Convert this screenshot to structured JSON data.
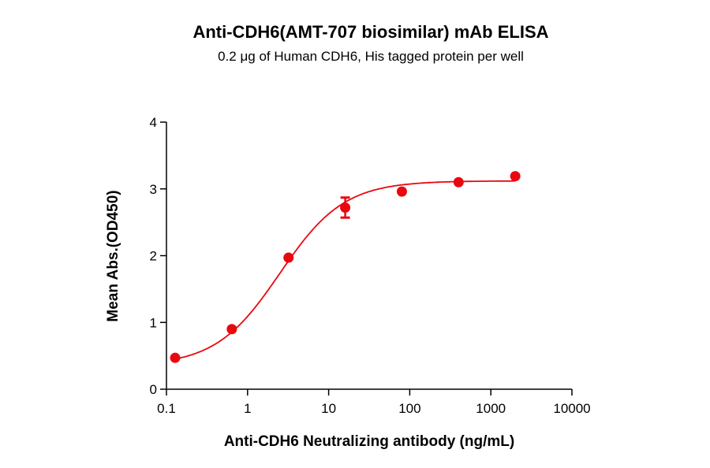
{
  "chart_data": {
    "type": "scatter",
    "title": "Anti-CDH6(AMT-707 biosimilar) mAb ELISA",
    "subtitle": "0.2 μg of Human CDH6, His tagged protein per well",
    "xlabel": "Anti-CDH6 Neutralizing antibody (ng/mL)",
    "ylabel": "Mean Abs.(OD450)",
    "xscale": "log",
    "xlim": [
      0.1,
      10000
    ],
    "ylim": [
      0,
      4
    ],
    "xticks": [
      "0.1",
      "1",
      "10",
      "100",
      "1000",
      "10000"
    ],
    "yticks": [
      "0",
      "1",
      "2",
      "3",
      "4"
    ],
    "grid": false,
    "color": "#e8080e",
    "fit_curve": "sigmoidal",
    "series": [
      {
        "x": [
          0.128,
          0.64,
          3.2,
          16,
          80,
          400,
          2000
        ],
        "y": [
          0.47,
          0.9,
          1.97,
          2.72,
          2.96,
          3.1,
          3.19
        ],
        "error": [
          0,
          0,
          0,
          0.15,
          0,
          0,
          0
        ]
      }
    ]
  }
}
